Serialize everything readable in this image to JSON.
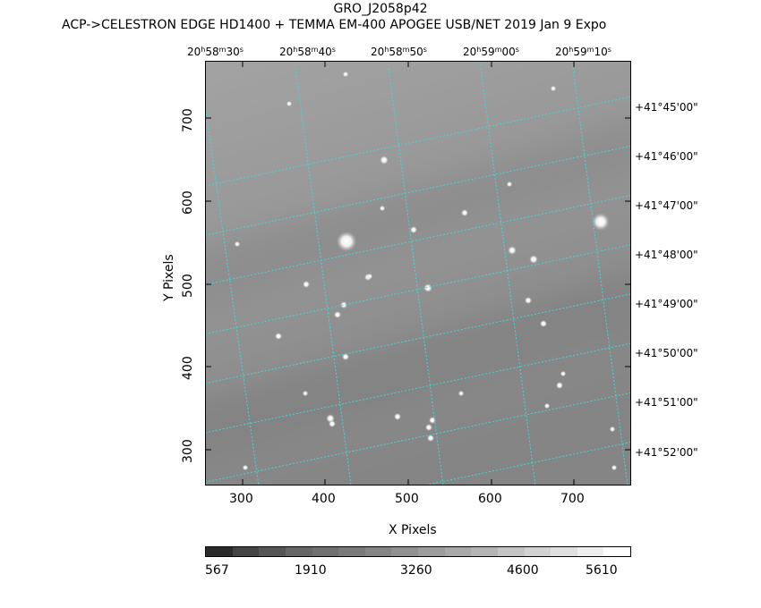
{
  "header": {
    "title": "GRO_J2058p42",
    "subtitle": "ACP->CELESTRON EDGE HD1400 + TEMMA EM-400 APOGEE USB/NET   2019 Jan  9    Expo"
  },
  "axes": {
    "xlabel": "X Pixels",
    "ylabel": "Y Pixels",
    "x_ticks": [
      "300",
      "400",
      "500",
      "600",
      "700"
    ],
    "y_ticks": [
      "300",
      "400",
      "500",
      "600",
      "700"
    ],
    "ra_labels": [
      {
        "h": "20",
        "m": "58",
        "s": "30"
      },
      {
        "h": "20",
        "m": "58",
        "s": "40"
      },
      {
        "h": "20",
        "m": "58",
        "s": "50"
      },
      {
        "h": "20",
        "m": "59",
        "s": "00"
      },
      {
        "h": "20",
        "m": "59",
        "s": "10"
      }
    ],
    "dec_labels": [
      "+41°45'00\"",
      "+41°46'00\"",
      "+41°47'00\"",
      "+41°48'00\"",
      "+41°49'00\"",
      "+41°50'00\"",
      "+41°51'00\"",
      "+41°52'00\""
    ],
    "ra_unit_h": "h",
    "ra_unit_m": "m",
    "ra_unit_s": "s"
  },
  "colorbar": {
    "labels": [
      "567",
      "1910",
      "3260",
      "4600",
      "5610"
    ]
  },
  "colors": {
    "grid": "#3fd9d9",
    "sky_light": "#9b9b9b",
    "sky_dark": "#7e7e7e"
  }
}
